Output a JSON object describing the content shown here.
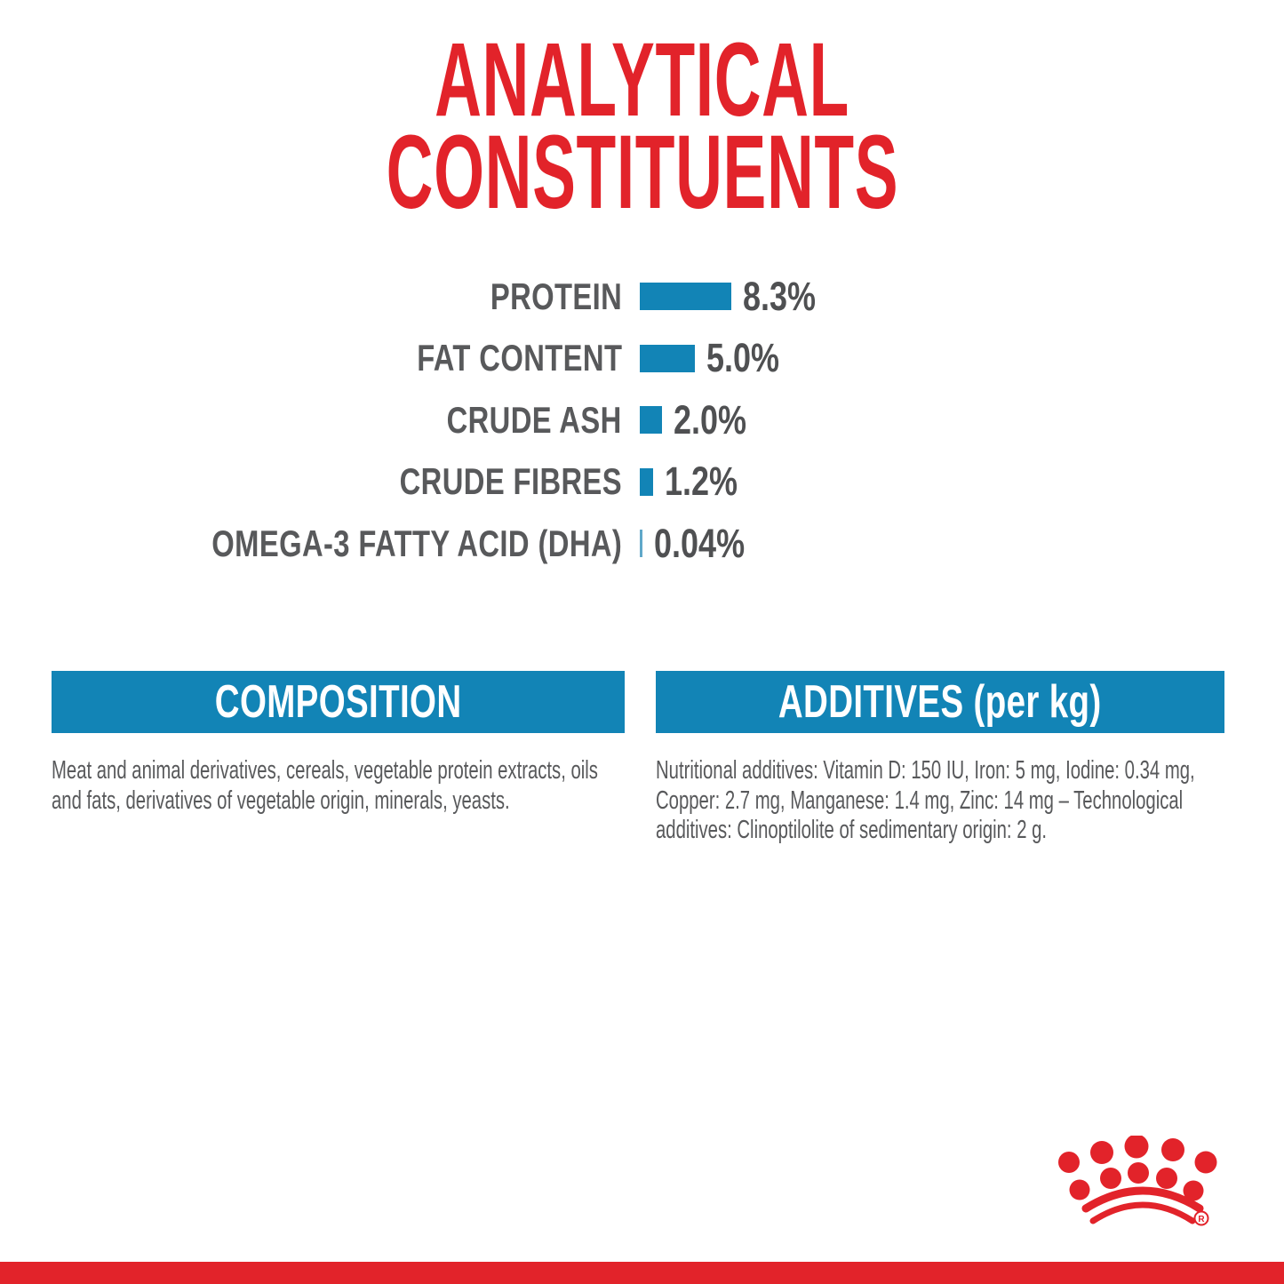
{
  "header": {
    "title_lines": [
      "ANALYTICAL",
      "CONSTITUENTS"
    ]
  },
  "chart_data": {
    "type": "bar",
    "orientation": "horizontal",
    "categories": [
      "PROTEIN",
      "FAT CONTENT",
      "CRUDE ASH",
      "CRUDE FIBRES",
      "OMEGA-3 FATTY ACID (DHA)"
    ],
    "values": [
      8.3,
      5.0,
      2.0,
      1.2,
      0.04
    ],
    "value_labels": [
      "8.3%",
      "5.0%",
      "2.0%",
      "1.2%",
      "0.04%"
    ],
    "unit": "%",
    "title": "ANALYTICAL CONSTITUENTS",
    "xlabel": "",
    "ylabel": "",
    "xlim": [
      0,
      10
    ],
    "grid": false,
    "legend": "none",
    "bar_color": "#1284b6",
    "tiny_bar_color": "#5fa8c9"
  },
  "sections": {
    "composition": {
      "header": "COMPOSITION",
      "body": "Meat and animal derivatives, cereals, vegetable protein extracts, oils and fats, derivatives of vegetable origin, minerals, yeasts."
    },
    "additives": {
      "header": "ADDITIVES (per kg)",
      "body": "Nutritional additives: Vitamin D: 150 IU, Iron: 5 mg, Iodine: 0.34 mg, Copper: 2.7 mg, Manganese: 1.4 mg, Zinc: 14 mg – Technological additives: Clinoptilolite of sedimentary origin: 2 g."
    }
  },
  "brand": {
    "logo": "royal-canin-crown",
    "registered_mark": "R"
  },
  "colors": {
    "red": "#e2232a",
    "blue": "#1284b6",
    "pale_blue": "#5fa8c9",
    "text_gray": "#58595b",
    "background": "#ffffff"
  }
}
